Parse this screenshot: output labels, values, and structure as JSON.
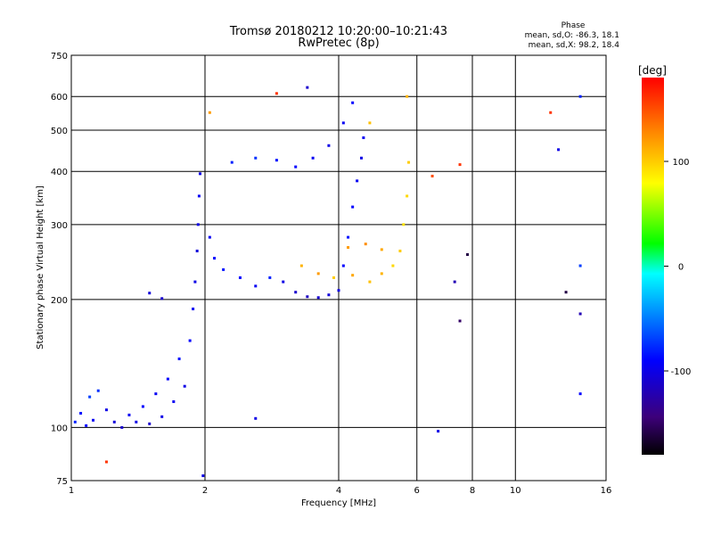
{
  "chart_data": {
    "type": "scatter",
    "title": "Tromsø 20180212 10:20:00–10:21:43",
    "subtitle": "RwPretec (8p)",
    "xlabel": "Frequency [MHz]",
    "ylabel": "Stationary phase Virtual Height [km]",
    "x_scale": "log",
    "y_scale": "log",
    "xlim": [
      1,
      16
    ],
    "ylim": [
      75,
      750
    ],
    "x_ticks": [
      "1",
      "2",
      "4",
      "6",
      "8",
      "10",
      "16"
    ],
    "y_ticks": [
      "75",
      "100",
      "200",
      "300",
      "400",
      "500",
      "600",
      "750"
    ],
    "x_gridlines": [
      2,
      4,
      6,
      8,
      10
    ],
    "y_gridlines": [
      100,
      200,
      300,
      400,
      500,
      600
    ],
    "grid": true,
    "phase_info": {
      "heading": "Phase",
      "line_o": "mean, sd,O: -86.3, 18.1",
      "line_x": "mean, sd,X:  98.2, 18.4"
    },
    "colorbar": {
      "label": "[deg]",
      "range": [
        -180,
        180
      ],
      "ticks": [
        "100",
        "0",
        "-100"
      ],
      "tick_values": [
        100,
        0,
        -100
      ],
      "colors": [
        "#000000",
        "#3d007a",
        "#0000ff",
        "#0090ff",
        "#00ffff",
        "#00ff00",
        "#ffff00",
        "#ff8c00",
        "#ff0000"
      ]
    },
    "series": [
      {
        "points": [
          {
            "x": 1.02,
            "y": 103,
            "c": -80
          },
          {
            "x": 1.05,
            "y": 108,
            "c": -85
          },
          {
            "x": 1.08,
            "y": 101,
            "c": -90
          },
          {
            "x": 1.1,
            "y": 118,
            "c": -70
          },
          {
            "x": 1.12,
            "y": 104,
            "c": -95
          },
          {
            "x": 1.15,
            "y": 122,
            "c": -75
          },
          {
            "x": 1.2,
            "y": 110,
            "c": -100
          },
          {
            "x": 1.25,
            "y": 103,
            "c": -105
          },
          {
            "x": 1.3,
            "y": 100,
            "c": -110
          },
          {
            "x": 1.35,
            "y": 107,
            "c": -95
          },
          {
            "x": 1.4,
            "y": 103,
            "c": -100
          },
          {
            "x": 1.45,
            "y": 112,
            "c": -90
          },
          {
            "x": 1.5,
            "y": 102,
            "c": -110
          },
          {
            "x": 1.55,
            "y": 120,
            "c": -95
          },
          {
            "x": 1.6,
            "y": 106,
            "c": -100
          },
          {
            "x": 1.65,
            "y": 130,
            "c": -90
          },
          {
            "x": 1.7,
            "y": 115,
            "c": -95
          },
          {
            "x": 1.75,
            "y": 145,
            "c": -85
          },
          {
            "x": 1.8,
            "y": 125,
            "c": -100
          },
          {
            "x": 1.85,
            "y": 160,
            "c": -90
          },
          {
            "x": 1.88,
            "y": 190,
            "c": -95
          },
          {
            "x": 1.9,
            "y": 220,
            "c": -100
          },
          {
            "x": 1.92,
            "y": 260,
            "c": -105
          },
          {
            "x": 1.93,
            "y": 300,
            "c": -100
          },
          {
            "x": 1.94,
            "y": 350,
            "c": -95
          },
          {
            "x": 1.95,
            "y": 395,
            "c": -100
          },
          {
            "x": 1.6,
            "y": 201,
            "c": -110
          },
          {
            "x": 1.5,
            "y": 207,
            "c": -105
          },
          {
            "x": 2.05,
            "y": 280,
            "c": -95
          },
          {
            "x": 2.1,
            "y": 250,
            "c": -90
          },
          {
            "x": 2.2,
            "y": 235,
            "c": -85
          },
          {
            "x": 2.4,
            "y": 225,
            "c": -90
          },
          {
            "x": 2.6,
            "y": 215,
            "c": -95
          },
          {
            "x": 2.8,
            "y": 225,
            "c": -80
          },
          {
            "x": 3.0,
            "y": 220,
            "c": -100
          },
          {
            "x": 3.2,
            "y": 208,
            "c": -110
          },
          {
            "x": 3.4,
            "y": 203,
            "c": -115
          },
          {
            "x": 3.6,
            "y": 202,
            "c": -110
          },
          {
            "x": 3.8,
            "y": 205,
            "c": -105
          },
          {
            "x": 4.0,
            "y": 210,
            "c": -100
          },
          {
            "x": 4.1,
            "y": 240,
            "c": -90
          },
          {
            "x": 4.2,
            "y": 280,
            "c": -85
          },
          {
            "x": 4.3,
            "y": 330,
            "c": -90
          },
          {
            "x": 4.4,
            "y": 380,
            "c": -95
          },
          {
            "x": 4.5,
            "y": 430,
            "c": -100
          },
          {
            "x": 4.55,
            "y": 480,
            "c": -95
          },
          {
            "x": 2.3,
            "y": 420,
            "c": -80
          },
          {
            "x": 2.6,
            "y": 430,
            "c": -75
          },
          {
            "x": 2.9,
            "y": 425,
            "c": -85
          },
          {
            "x": 3.2,
            "y": 410,
            "c": -90
          },
          {
            "x": 3.5,
            "y": 430,
            "c": -95
          },
          {
            "x": 3.8,
            "y": 460,
            "c": -100
          },
          {
            "x": 4.1,
            "y": 520,
            "c": -95
          },
          {
            "x": 4.3,
            "y": 580,
            "c": -90
          },
          {
            "x": 3.3,
            "y": 240,
            "c": 110
          },
          {
            "x": 3.6,
            "y": 230,
            "c": 120
          },
          {
            "x": 3.9,
            "y": 225,
            "c": 100
          },
          {
            "x": 4.3,
            "y": 228,
            "c": 115
          },
          {
            "x": 4.7,
            "y": 220,
            "c": 105
          },
          {
            "x": 5.0,
            "y": 230,
            "c": 110
          },
          {
            "x": 5.3,
            "y": 240,
            "c": 95
          },
          {
            "x": 5.5,
            "y": 260,
            "c": 100
          },
          {
            "x": 5.6,
            "y": 300,
            "c": 90
          },
          {
            "x": 5.7,
            "y": 350,
            "c": 95
          },
          {
            "x": 5.75,
            "y": 420,
            "c": 100
          },
          {
            "x": 5.7,
            "y": 600,
            "c": 110
          },
          {
            "x": 4.2,
            "y": 265,
            "c": 120
          },
          {
            "x": 4.6,
            "y": 270,
            "c": 125
          },
          {
            "x": 5.0,
            "y": 262,
            "c": 115
          },
          {
            "x": 4.7,
            "y": 520,
            "c": 105
          },
          {
            "x": 6.5,
            "y": 390,
            "c": 150
          },
          {
            "x": 7.5,
            "y": 415,
            "c": 160
          },
          {
            "x": 7.8,
            "y": 255,
            "c": -160
          },
          {
            "x": 7.3,
            "y": 220,
            "c": -120
          },
          {
            "x": 7.5,
            "y": 178,
            "c": -150
          },
          {
            "x": 12.0,
            "y": 550,
            "c": 160
          },
          {
            "x": 12.5,
            "y": 450,
            "c": -100
          },
          {
            "x": 14.0,
            "y": 600,
            "c": -80
          },
          {
            "x": 14.0,
            "y": 240,
            "c": -70
          },
          {
            "x": 13.0,
            "y": 208,
            "c": -160
          },
          {
            "x": 14.0,
            "y": 185,
            "c": -120
          },
          {
            "x": 14.0,
            "y": 120,
            "c": -90
          },
          {
            "x": 2.6,
            "y": 105,
            "c": -100
          },
          {
            "x": 2.9,
            "y": 610,
            "c": 160
          },
          {
            "x": 3.4,
            "y": 630,
            "c": -110
          },
          {
            "x": 1.2,
            "y": 83,
            "c": 160
          },
          {
            "x": 1.98,
            "y": 77,
            "c": -100
          },
          {
            "x": 6.7,
            "y": 98,
            "c": -100
          },
          {
            "x": 2.05,
            "y": 550,
            "c": 120
          }
        ]
      }
    ]
  }
}
